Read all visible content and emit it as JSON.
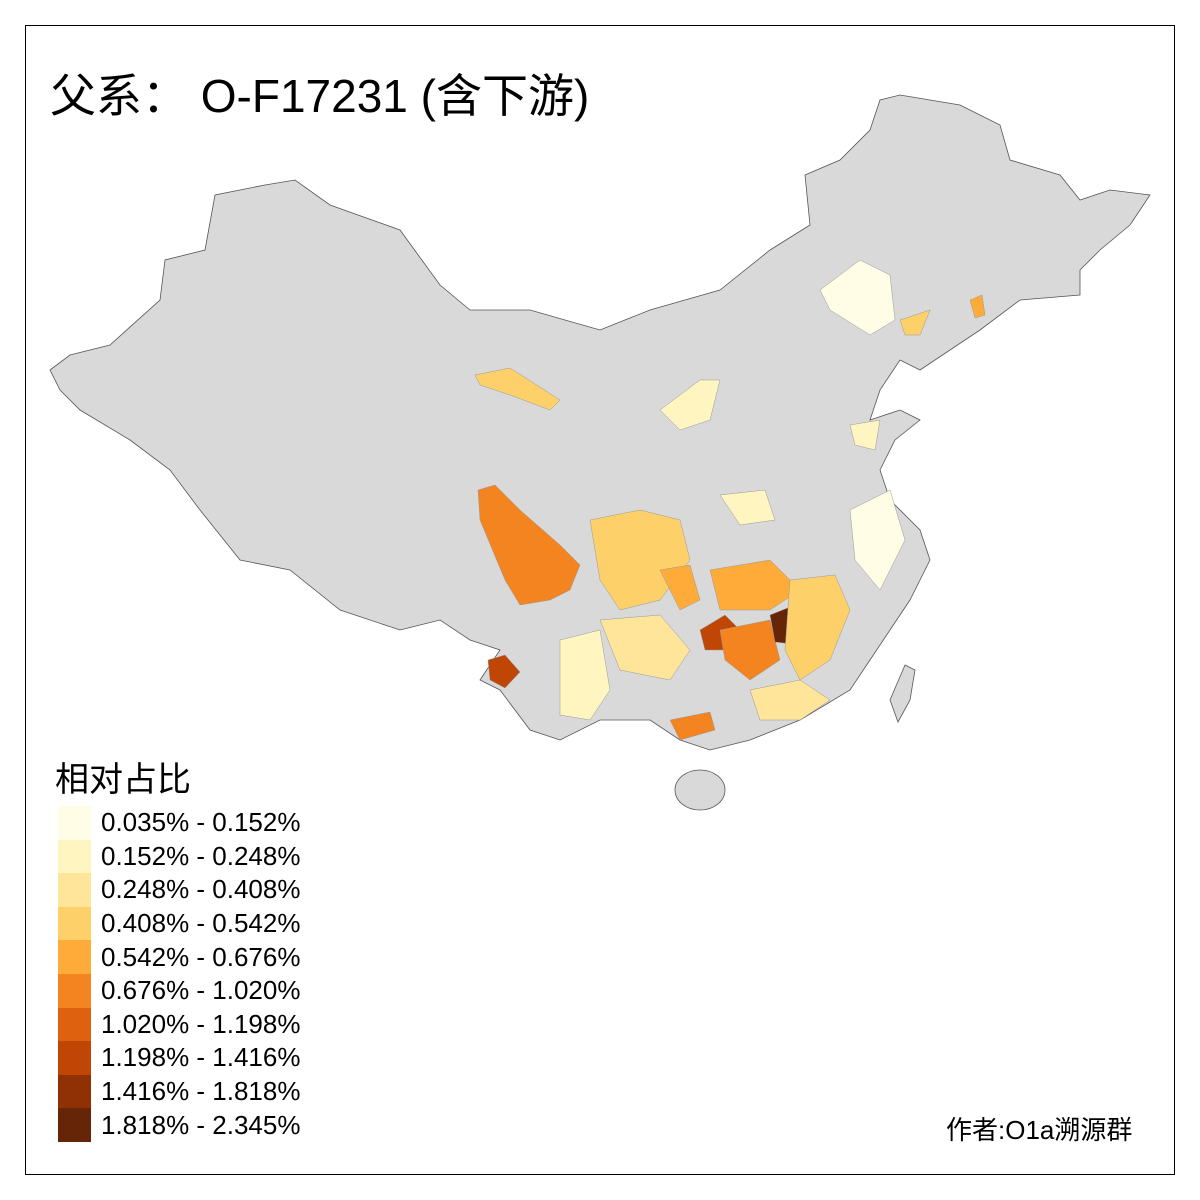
{
  "title": "父系： O-F17231 (含下游)",
  "legend": {
    "title": "相对占比",
    "items": [
      {
        "label": "0.035% - 0.152%",
        "color": "#fffde6"
      },
      {
        "label": "0.152% - 0.248%",
        "color": "#fff5c0"
      },
      {
        "label": "0.248% - 0.408%",
        "color": "#fee59a"
      },
      {
        "label": "0.408% - 0.542%",
        "color": "#fed06a"
      },
      {
        "label": "0.542% - 0.676%",
        "color": "#feab3a"
      },
      {
        "label": "0.676% - 1.020%",
        "color": "#f3841f"
      },
      {
        "label": "1.020% - 1.198%",
        "color": "#de6110"
      },
      {
        "label": "1.198% - 1.416%",
        "color": "#bf4604"
      },
      {
        "label": "1.416% - 1.818%",
        "color": "#8f3104"
      },
      {
        "label": "1.818% - 2.345%",
        "color": "#662506"
      }
    ]
  },
  "no_data_color": "#d9d9d9",
  "credit": "作者:O1a溯源群"
}
